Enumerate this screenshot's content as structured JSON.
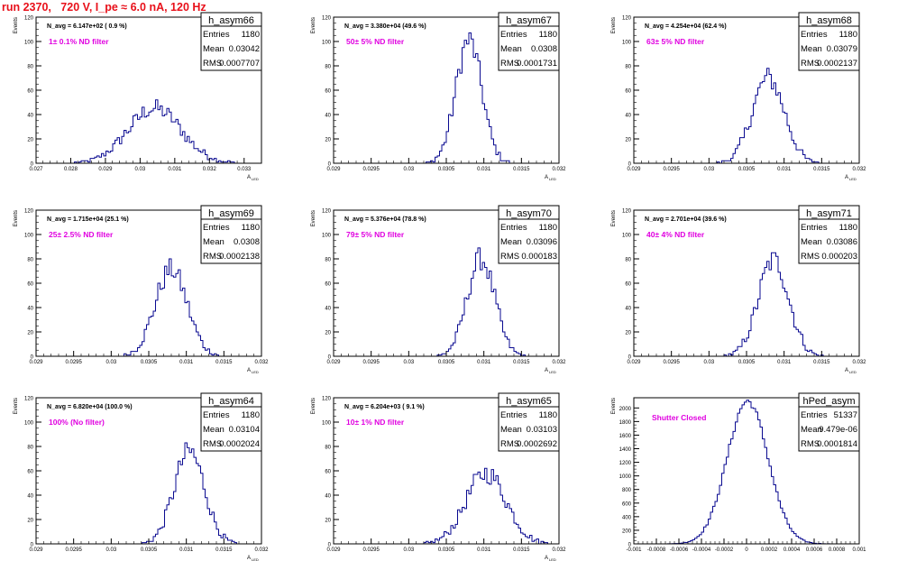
{
  "page": {
    "title": "run 2370,   720 V, I_pe ≈ 6.0 nA, 120 Hz"
  },
  "style": {
    "line_color": "#0a0a90",
    "annotation_color": "#e000e0",
    "title_color": "#e8101a"
  },
  "chart_data": [
    {
      "type": "histogram",
      "name": "h_asym66",
      "stats": {
        "entries_label": "Entries",
        "entries": "1180",
        "mean_label": "Mean",
        "mean": "0.03042",
        "rms_label": "RMS",
        "rms": "0.0007707"
      },
      "navg": "N_avg = 6.147e+02 ( 0.9 %)",
      "filter": "1± 0.1% ND filter",
      "xlabel": "A_uid",
      "xsub": "LED",
      "ylabel": "Events",
      "xlim": [
        0.027,
        0.0335
      ],
      "ylim": [
        0,
        120
      ],
      "xticks": [
        "0.027",
        "0.028",
        "0.029",
        "0.03",
        "0.031",
        "0.032",
        "0.033"
      ],
      "yticks": [
        "0",
        "20",
        "40",
        "60",
        "80",
        "100",
        "120"
      ],
      "mean_value": 0.03042,
      "rms_value": 0.0007707,
      "peak": 45,
      "entries_value": 1180
    },
    {
      "type": "histogram",
      "name": "h_asym67",
      "stats": {
        "entries_label": "Entries",
        "entries": "1180",
        "mean_label": "Mean",
        "mean": "0.0308",
        "rms_label": "RMS",
        "rms": "0.0001731"
      },
      "navg": "N_avg = 3.380e+04 (49.6 %)",
      "filter": "50± 5% ND filter",
      "xlabel": "A_uid",
      "xsub": "LED",
      "ylabel": "Events",
      "xlim": [
        0.029,
        0.032
      ],
      "ylim": [
        0,
        120
      ],
      "xticks": [
        "0.029",
        "0.0295",
        "0.03",
        "0.0305",
        "0.031",
        "0.0315",
        "0.032"
      ],
      "yticks": [
        "0",
        "20",
        "40",
        "60",
        "80",
        "100",
        "120"
      ],
      "mean_value": 0.0308,
      "rms_value": 0.0001731,
      "peak": 101,
      "entries_value": 1180
    },
    {
      "type": "histogram",
      "name": "h_asym68",
      "stats": {
        "entries_label": "Entries",
        "entries": "1180",
        "mean_label": "Mean",
        "mean": "0.03079",
        "rms_label": "RMS",
        "rms": "0.0002137"
      },
      "navg": "N_avg = 4.254e+04 (62.4 %)",
      "filter": "63± 5% ND filter",
      "xlabel": "A_uid",
      "xsub": "LED",
      "ylabel": "Events",
      "xlim": [
        0.029,
        0.032
      ],
      "ylim": [
        0,
        120
      ],
      "xticks": [
        "0.029",
        "0.0295",
        "0.03",
        "0.0305",
        "0.031",
        "0.0315",
        "0.032"
      ],
      "yticks": [
        "0",
        "20",
        "40",
        "60",
        "80",
        "100",
        "120"
      ],
      "mean_value": 0.03079,
      "rms_value": 0.0002137,
      "peak": 70,
      "entries_value": 1180
    },
    {
      "type": "histogram",
      "name": "h_asym69",
      "stats": {
        "entries_label": "Entries",
        "entries": "1180",
        "mean_label": "Mean",
        "mean": "0.0308",
        "rms_label": "RMS",
        "rms": "0.0002138"
      },
      "navg": "N_avg = 1.715e+04 (25.1 %)",
      "filter": "25± 2.5% ND filter",
      "xlabel": "A_uid",
      "xsub": "LED",
      "ylabel": "Events",
      "xlim": [
        0.029,
        0.032
      ],
      "ylim": [
        0,
        120
      ],
      "xticks": [
        "0.029",
        "0.0295",
        "0.03",
        "0.0305",
        "0.031",
        "0.0315",
        "0.032"
      ],
      "yticks": [
        "0",
        "20",
        "40",
        "60",
        "80",
        "100",
        "120"
      ],
      "mean_value": 0.0308,
      "rms_value": 0.0002138,
      "peak": 71,
      "entries_value": 1180
    },
    {
      "type": "histogram",
      "name": "h_asym70",
      "stats": {
        "entries_label": "Entries",
        "entries": "1180",
        "mean_label": "Mean",
        "mean": "0.03096",
        "rms_label": "RMS",
        "rms": "0.000183"
      },
      "navg": "N_avg = 5.376e+04 (78.8 %)",
      "filter": "79± 5% ND filter",
      "xlabel": "A_uid",
      "xsub": "LED",
      "ylabel": "Events",
      "xlim": [
        0.029,
        0.032
      ],
      "ylim": [
        0,
        120
      ],
      "xticks": [
        "0.029",
        "0.0295",
        "0.03",
        "0.0305",
        "0.031",
        "0.0315",
        "0.032"
      ],
      "yticks": [
        "0",
        "20",
        "40",
        "60",
        "80",
        "100",
        "120"
      ],
      "mean_value": 0.03096,
      "rms_value": 0.000183,
      "peak": 80,
      "entries_value": 1180
    },
    {
      "type": "histogram",
      "name": "h_asym71",
      "stats": {
        "entries_label": "Entries",
        "entries": "1180",
        "mean_label": "Mean",
        "mean": "0.03086",
        "rms_label": "RMS",
        "rms": "0.000203"
      },
      "navg": "N_avg = 2.701e+04 (39.6 %)",
      "filter": "40± 4% ND filter",
      "xlabel": "A_uid",
      "xsub": "LED",
      "ylabel": "Events",
      "xlim": [
        0.029,
        0.032
      ],
      "ylim": [
        0,
        120
      ],
      "xticks": [
        "0.029",
        "0.0295",
        "0.03",
        "0.0305",
        "0.031",
        "0.0315",
        "0.032"
      ],
      "yticks": [
        "0",
        "20",
        "40",
        "60",
        "80",
        "100",
        "120"
      ],
      "mean_value": 0.03086,
      "rms_value": 0.000203,
      "peak": 79,
      "entries_value": 1180
    },
    {
      "type": "histogram",
      "name": "h_asym64",
      "stats": {
        "entries_label": "Entries",
        "entries": "1180",
        "mean_label": "Mean",
        "mean": "0.03104",
        "rms_label": "RMS",
        "rms": "0.0002024"
      },
      "navg": "N_avg = 6.820e+04 (100.0 %)",
      "filter": "100% (No filter)",
      "xlabel": "A_uid",
      "xsub": "LED",
      "ylabel": "Events",
      "xlim": [
        0.029,
        0.032
      ],
      "ylim": [
        0,
        120
      ],
      "xticks": [
        "0.029",
        "0.0295",
        "0.03",
        "0.0305",
        "0.031",
        "0.0315",
        "0.032"
      ],
      "yticks": [
        "0",
        "20",
        "40",
        "60",
        "80",
        "100",
        "120"
      ],
      "mean_value": 0.03104,
      "rms_value": 0.0002024,
      "peak": 76,
      "entries_value": 1180
    },
    {
      "type": "histogram",
      "name": "h_asym65",
      "stats": {
        "entries_label": "Entries",
        "entries": "1180",
        "mean_label": "Mean",
        "mean": "0.03103",
        "rms_label": "RMS",
        "rms": "0.0002692"
      },
      "navg": "N_avg = 6.204e+03 ( 9.1 %)",
      "filter": "10± 1% ND filter",
      "xlabel": "A_uid",
      "xsub": "LED",
      "ylabel": "Events",
      "xlim": [
        0.029,
        0.032
      ],
      "ylim": [
        0,
        120
      ],
      "xticks": [
        "0.029",
        "0.0295",
        "0.03",
        "0.0305",
        "0.031",
        "0.0315",
        "0.032"
      ],
      "yticks": [
        "0",
        "20",
        "40",
        "60",
        "80",
        "100",
        "120"
      ],
      "mean_value": 0.03103,
      "rms_value": 0.0002692,
      "peak": 58,
      "entries_value": 1180
    },
    {
      "type": "histogram",
      "name": "hPed_asym",
      "stats": {
        "entries_label": "Entries",
        "entries": "51337",
        "mean_label": "Mean",
        "mean": "9.479e-06",
        "rms_label": "RMS",
        "rms": "0.0001814"
      },
      "navg": "",
      "filter": "Shutter Closed",
      "xlabel": "",
      "xsub": "",
      "ylabel": "Events",
      "xlim": [
        -0.001,
        0.001
      ],
      "ylim": [
        0,
        2150
      ],
      "xticks": [
        "-0.001",
        "-0.0008",
        "-0.0006",
        "-0.0004",
        "-0.0002",
        "0",
        "0.0002",
        "0.0004",
        "0.0006",
        "0.0008",
        "0.001"
      ],
      "yticks": [
        "0",
        "200",
        "400",
        "600",
        "800",
        "1000",
        "1200",
        "1400",
        "1600",
        "1800",
        "2000"
      ],
      "mean_value": 9.479e-06,
      "rms_value": 0.0001814,
      "peak": 2100,
      "entries_value": 51337
    }
  ]
}
